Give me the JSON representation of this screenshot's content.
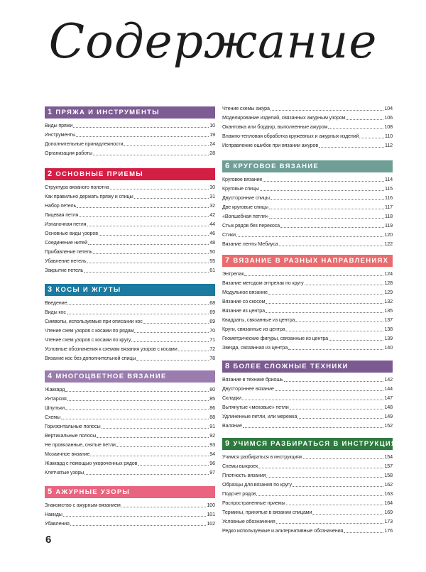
{
  "title": "Содержание",
  "page_number": "6",
  "sections": [
    {
      "num": "1",
      "title": "Пряжа и инструменты",
      "color": "#7d5c93",
      "column": "left",
      "items": [
        {
          "label": "Виды пряжи",
          "page": "10"
        },
        {
          "label": "Инструменты",
          "page": "19"
        },
        {
          "label": "Дополнительные принадлежности",
          "page": "24"
        },
        {
          "label": "Организация работы",
          "page": "28"
        }
      ]
    },
    {
      "num": "2",
      "title": "Основные приемы",
      "color": "#d41f45",
      "column": "left",
      "items": [
        {
          "label": "Структура вязаного полотна",
          "page": "30"
        },
        {
          "label": "Как правильно держать пряжу и спицы",
          "page": "31"
        },
        {
          "label": "Набор петель",
          "page": "32"
        },
        {
          "label": "Лицевая петля",
          "page": "42"
        },
        {
          "label": "Изнаночная петля",
          "page": "44"
        },
        {
          "label": "Основные виды узоров",
          "page": "46"
        },
        {
          "label": "Соединение нитей",
          "page": "48"
        },
        {
          "label": "Прибавление петель",
          "page": "50"
        },
        {
          "label": "Убавление петель",
          "page": "55"
        },
        {
          "label": "Закрытие петель",
          "page": "61"
        }
      ]
    },
    {
      "num": "3",
      "title": "Косы и жгуты",
      "color": "#1a7aa0",
      "column": "left",
      "items": [
        {
          "label": "Введение",
          "page": "68"
        },
        {
          "label": "Виды кос",
          "page": "69"
        },
        {
          "label": "Символы, используемые при описании кос",
          "page": "69"
        },
        {
          "label": "Чтение схем узоров с косами по рядам",
          "page": "70"
        },
        {
          "label": "Чтение схем узоров с косами по кругу",
          "page": "71"
        },
        {
          "label": "Условные обозначения к схемам вязания узоров с косами",
          "page": "72"
        },
        {
          "label": "Вязание кос без дополнительной спицы",
          "page": "78"
        }
      ]
    },
    {
      "num": "4",
      "title": "Многоцветное вязание",
      "color": "#9a7cae",
      "column": "left",
      "items": [
        {
          "label": "Жаккард",
          "page": "80"
        },
        {
          "label": "Интарсия",
          "page": "85"
        },
        {
          "label": "Шпульки",
          "page": "86"
        },
        {
          "label": "Схемы",
          "page": "88"
        },
        {
          "label": "Горизонтальные полосы",
          "page": "91"
        },
        {
          "label": "Вертикальные полосы",
          "page": "92"
        },
        {
          "label": "Не провязанные, снятые петли",
          "page": "93"
        },
        {
          "label": "Мозаичное вязание",
          "page": "94"
        },
        {
          "label": "Жаккард с помощью укороченных рядов",
          "page": "96"
        },
        {
          "label": "Клетчатые узоры",
          "page": "97"
        }
      ]
    },
    {
      "num": "5",
      "title": "Ажурные узоры",
      "color": "#e8647f",
      "column": "left",
      "items": [
        {
          "label": "Знакомство с ажурным вязанием",
          "page": "100"
        },
        {
          "label": "Накиды",
          "page": "101"
        },
        {
          "label": "Убавления",
          "page": "102"
        }
      ]
    },
    {
      "num": "",
      "title": "",
      "color": "",
      "column": "right",
      "items": [
        {
          "label": "Чтение схемы ажура",
          "page": "104"
        },
        {
          "label": "Моделирование изделий, связанных ажурным узором",
          "page": "106"
        },
        {
          "label": "Окантовка или бордюр, выполненные ажуром",
          "page": "108"
        },
        {
          "label": "Влажно-тепловая обработка кружевных и ажурных изделий",
          "page": "110"
        },
        {
          "label": "Исправление ошибок при вязании ажуров",
          "page": "112"
        }
      ]
    },
    {
      "num": "6",
      "title": "Круговое вязание",
      "color": "#6e9e96",
      "column": "right",
      "items": [
        {
          "label": "Круговое вязание",
          "page": "114"
        },
        {
          "label": "Круговые спицы",
          "page": "115"
        },
        {
          "label": "Двусторонние спицы",
          "page": "116"
        },
        {
          "label": "Две круговые спицы",
          "page": "117"
        },
        {
          "label": "«Волшебная петля»",
          "page": "118"
        },
        {
          "label": "Стык рядов без перекоса",
          "page": "119"
        },
        {
          "label": "Стики",
          "page": "120"
        },
        {
          "label": "Вязание ленты Мебиуса",
          "page": "122"
        }
      ]
    },
    {
      "num": "7",
      "title": "Вязание в разных направлениях",
      "color": "#e96b6e",
      "column": "right",
      "items": [
        {
          "label": "Энтрелак",
          "page": "124"
        },
        {
          "label": "Вязание методом энтрелак по кругу",
          "page": "128"
        },
        {
          "label": "Модульное вязание",
          "page": "129"
        },
        {
          "label": "Вязание со скосом",
          "page": "132"
        },
        {
          "label": "Вязание из центра",
          "page": "135"
        },
        {
          "label": "Квадраты, связанные из центра",
          "page": "137"
        },
        {
          "label": "Круги, связанные из центра",
          "page": "138"
        },
        {
          "label": "Геометрические фигуры, связанные из центра",
          "page": "139"
        },
        {
          "label": "Звезда, связанная из центра",
          "page": "140"
        }
      ]
    },
    {
      "num": "8",
      "title": "Более сложные техники",
      "color": "#7b5a92",
      "column": "right",
      "items": [
        {
          "label": "Вязание в технике бриошь",
          "page": "142"
        },
        {
          "label": "Двустороннее вязание",
          "page": "144"
        },
        {
          "label": "Складки",
          "page": "147"
        },
        {
          "label": "Вытянутые «меховые» петли",
          "page": "148"
        },
        {
          "label": "Удлиненные петли, или мережка",
          "page": "149"
        },
        {
          "label": "Валяние",
          "page": "152"
        }
      ]
    },
    {
      "num": "9",
      "title": "Учимся разбираться в инструкциях",
      "color": "#2e7a3e",
      "column": "right",
      "items": [
        {
          "label": "Учимся разбираться в инструкциях",
          "page": "154"
        },
        {
          "label": "Схемы выкроек",
          "page": "157"
        },
        {
          "label": "Плотность вязания",
          "page": "158"
        },
        {
          "label": "Образцы для вязания по кругу",
          "page": "162"
        },
        {
          "label": "Подсчет рядов",
          "page": "163"
        },
        {
          "label": "Распространенные приемы",
          "page": "164"
        },
        {
          "label": "Термины, принятые в вязании спицами",
          "page": "169"
        },
        {
          "label": "Условные обозначения",
          "page": "173"
        },
        {
          "label": "Редко используемые и альтернативные обозначения",
          "page": "176"
        }
      ]
    }
  ]
}
